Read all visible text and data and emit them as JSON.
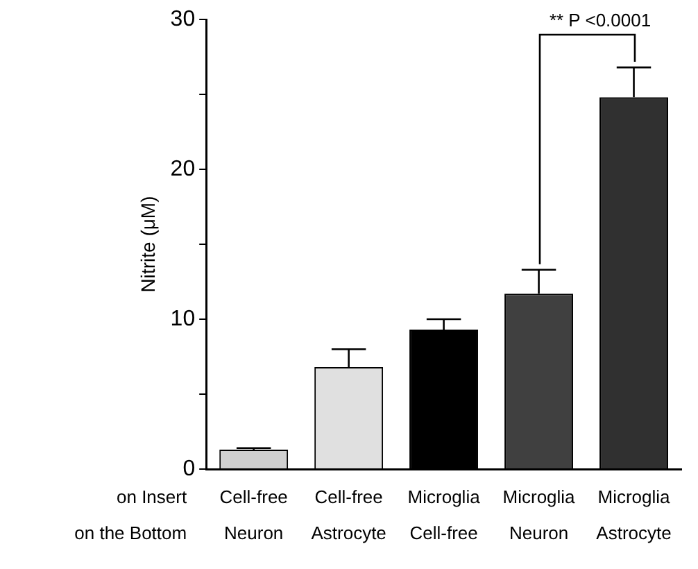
{
  "chart_data": {
    "type": "bar",
    "ylabel": "Nitrite (μM)",
    "categories": [
      "Cell-free\nNeuron",
      "Cell-free\nAstrocyte",
      "Microglia\nCell-free",
      "Microglia\nNeuron",
      "Microglia\nAstrocyte"
    ],
    "values": [
      1.3,
      6.8,
      9.3,
      11.7,
      24.8
    ],
    "errors": [
      0.1,
      1.2,
      0.7,
      1.6,
      2.0
    ],
    "colors": [
      "#d0d0d0",
      "#e0e0e0",
      "#000000",
      "#404040",
      "#303030"
    ],
    "ylim": [
      0,
      30
    ],
    "yticks": [
      0,
      {
        "value": 5,
        "label": null
      },
      10,
      {
        "value": 15,
        "label": null
      },
      20,
      {
        "value": 25,
        "label": null
      },
      30
    ],
    "grid": false,
    "annotations": [
      "on Insert",
      "on the Bottom",
      "** P <0.0001"
    ]
  }
}
